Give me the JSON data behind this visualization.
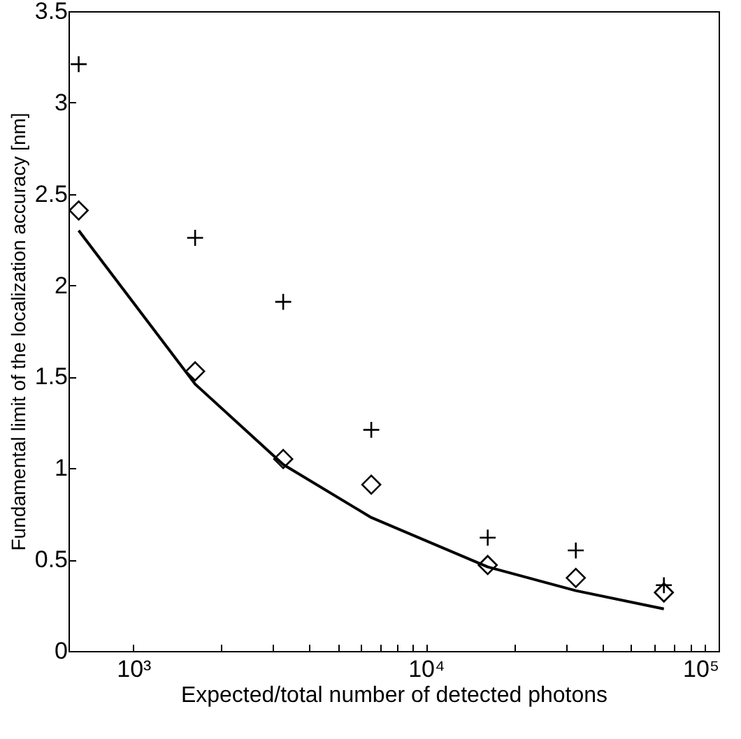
{
  "chart_data": {
    "type": "scatter",
    "xlabel": "Expected/total number of detected photons",
    "ylabel": "Fundamental limit of the localization accuracy [nm]",
    "log": "x",
    "grid": false,
    "xlim": [
      600,
      100000
    ],
    "xticks": [
      {
        "value": 1000,
        "label": "10³"
      },
      {
        "value": 2000,
        "label": null
      },
      {
        "value": 3000,
        "label": null
      },
      {
        "value": 4000,
        "label": null
      },
      {
        "value": 5000,
        "label": null
      },
      {
        "value": 6000,
        "label": null
      },
      {
        "value": 7000,
        "label": null
      },
      {
        "value": 8000,
        "label": null
      },
      {
        "value": 9000,
        "label": null
      },
      {
        "value": 10000,
        "label": "10⁴"
      },
      {
        "value": 20000,
        "label": null
      },
      {
        "value": 30000,
        "label": null
      },
      {
        "value": 40000,
        "label": null
      },
      {
        "value": 50000,
        "label": null
      },
      {
        "value": 60000,
        "label": null
      },
      {
        "value": 70000,
        "label": null
      },
      {
        "value": 80000,
        "label": null
      },
      {
        "value": 90000,
        "label": null
      },
      {
        "value": 100000,
        "label": "10⁵"
      }
    ],
    "ylim": [
      0,
      3.5
    ],
    "yticks": [
      0,
      0.5,
      1,
      1.5,
      2,
      2.5,
      3,
      3.5
    ],
    "x": [
      650,
      1625,
      3250,
      6500,
      16250,
      32500,
      65000
    ],
    "series": [
      {
        "type": "line",
        "color": "#000000",
        "marker": "none",
        "line_style": "solid",
        "values": [
          2.3,
          1.46,
          1.02,
          0.73,
          0.46,
          0.33,
          0.23
        ]
      },
      {
        "color": "#000000",
        "marker": "cross",
        "values": [
          3.21,
          2.26,
          1.91,
          1.21,
          0.62,
          0.55,
          0.36
        ]
      },
      {
        "color": "#000000",
        "marker": "diamond",
        "values": [
          2.41,
          1.53,
          1.05,
          0.91,
          0.47,
          0.4,
          0.32
        ]
      }
    ]
  }
}
